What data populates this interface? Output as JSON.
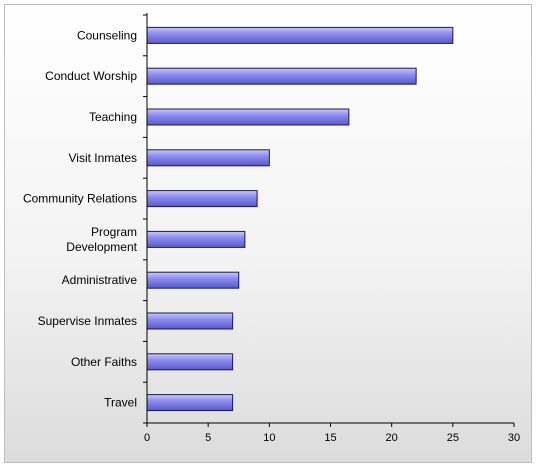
{
  "chart_data": {
    "type": "bar",
    "orientation": "horizontal",
    "categories": [
      "Counseling",
      "Conduct Worship",
      "Teaching",
      "Visit Inmates",
      "Community Relations",
      "Program Development",
      "Administrative",
      "Supervise Inmates",
      "Other Faiths",
      "Travel"
    ],
    "category_lines": [
      [
        "Counseling"
      ],
      [
        "Conduct Worship"
      ],
      [
        "Teaching"
      ],
      [
        "Visit Inmates"
      ],
      [
        "Community Relations"
      ],
      [
        "Program",
        "Development"
      ],
      [
        "Administrative"
      ],
      [
        "Supervise Inmates"
      ],
      [
        "Other Faiths"
      ],
      [
        "Travel"
      ]
    ],
    "values": [
      25,
      22,
      16.5,
      10,
      9,
      8,
      7.5,
      7,
      7,
      7
    ],
    "title": "",
    "xlabel": "",
    "ylabel": "",
    "xlim": [
      0,
      30
    ],
    "xticks": [
      "0",
      "5",
      "10",
      "15",
      "20",
      "25",
      "30"
    ],
    "grid": false,
    "legend": "none",
    "colors": {
      "bar_light": "#c8c8ff",
      "bar_mid": "#8c8cf0",
      "bar_dark": "#5a5ac8",
      "bar_edge": "#1a1a4a",
      "axis": "#000000"
    }
  }
}
